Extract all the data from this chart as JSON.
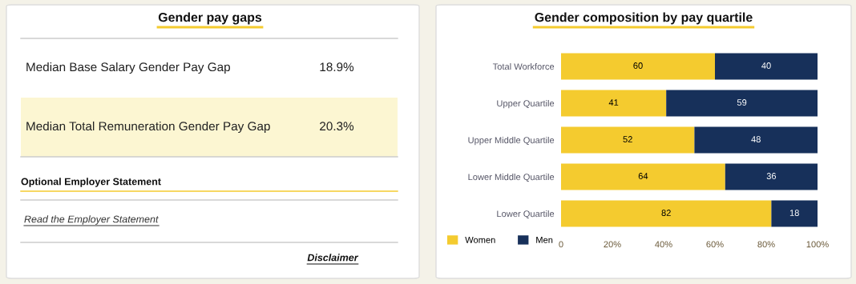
{
  "chart_data": [
    {
      "type": "other",
      "title": "Gender pay gaps",
      "annotations": [
        "Median Base Salary Gender Pay Gap",
        "18.9%",
        "Median Total Remuneration Gender Pay Gap",
        "20.3%",
        "Optional Employer Statement",
        "Read the Employer Statement",
        "Disclaimer"
      ]
    },
    {
      "type": "bar",
      "title": "Gender composition by pay quartile",
      "orientation": "horizontal",
      "stacked": true,
      "categories": [
        "Total Workforce",
        "Upper Quartile",
        "Upper Middle Quartile",
        "Lower Middle Quartile",
        "Lower Quartile"
      ],
      "series": [
        {
          "name": "Women",
          "color": "#f4cb2f",
          "values": [
            60,
            41,
            52,
            64,
            82
          ]
        },
        {
          "name": "Men",
          "color": "#17305a",
          "values": [
            40,
            59,
            48,
            36,
            18
          ]
        }
      ],
      "xlim": [
        0,
        100
      ],
      "xticks": [
        {
          "value": 0,
          "label": "0"
        },
        {
          "value": 20,
          "label": "20%"
        },
        {
          "value": 40,
          "label": "40%"
        },
        {
          "value": 60,
          "label": "60%"
        },
        {
          "value": 80,
          "label": "80%"
        },
        {
          "value": 100,
          "label": "100%"
        }
      ],
      "data_labels": true,
      "legend": "bottom left",
      "grid": false
    }
  ]
}
